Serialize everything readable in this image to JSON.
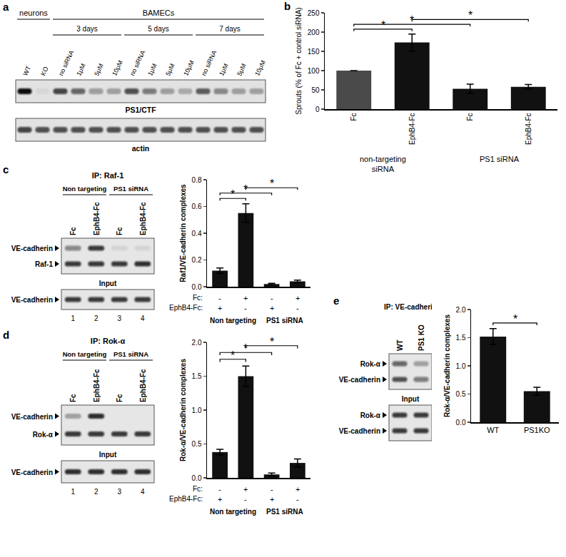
{
  "chart_data": [
    {
      "panel": "b",
      "type": "bar",
      "y_label": "Sprouts (% of Fc + control siRNA)",
      "categories": [
        "Fc",
        "EphB4-Fc",
        "Fc",
        "EphB4-Fc"
      ],
      "values": [
        100,
        173,
        53,
        58
      ],
      "errors": [
        0,
        22,
        12,
        6
      ],
      "colors": [
        "#4a4a4a",
        "#111111",
        "#111111",
        "#111111"
      ],
      "ylim": [
        0,
        250
      ],
      "yticks": [
        0,
        50,
        100,
        150,
        200,
        250
      ],
      "grid": false,
      "groups": [
        {
          "label": "non-targeting\nsiRNA",
          "members": [
            0,
            1
          ]
        },
        {
          "label": "PS1 siRNA",
          "members": [
            2,
            3
          ]
        }
      ],
      "significance": [
        {
          "pair": [
            0,
            1
          ],
          "label": "*"
        },
        {
          "pair": [
            0,
            2
          ],
          "label": "*"
        },
        {
          "pair": [
            1,
            3
          ],
          "label": "*"
        }
      ]
    },
    {
      "type": "bar",
      "y_label": "Raf1/VE-cadherin complexes",
      "categories": [
        null,
        null,
        null,
        null
      ],
      "values": [
        0.12,
        0.55,
        0.02,
        0.04
      ],
      "errors": [
        0.02,
        0.07,
        0.005,
        0.01
      ],
      "color": "#111111",
      "tick_labels": "y",
      "ylim": [
        0,
        0.8
      ],
      "yticks": [
        {
          "value": 0,
          "label": "0.0"
        },
        0.2,
        0.4,
        0.6,
        0.8
      ],
      "grid": false,
      "x_table": [
        {
          "label": "Fc:",
          "values": [
            "-",
            "+",
            "-",
            "+"
          ]
        },
        {
          "label": "EphB4-Fc:",
          "values": [
            "+",
            "-",
            "+",
            "-"
          ]
        }
      ],
      "groups": [
        {
          "label": "Non targeting",
          "members": [
            0,
            1
          ]
        },
        {
          "label": "PS1 siRNA",
          "members": [
            2,
            3
          ]
        }
      ],
      "significance": [
        {
          "pair": [
            0,
            1
          ],
          "label": "*"
        },
        {
          "pair": [
            0,
            2
          ],
          "label": "*"
        },
        {
          "pair": [
            1,
            3
          ],
          "label": "*"
        }
      ]
    },
    {
      "type": "bar",
      "y_label": "Rok-α/VE-cadherin complexes",
      "categories": [
        null,
        null,
        null,
        null
      ],
      "values": [
        0.38,
        1.5,
        0.05,
        0.22
      ],
      "errors": [
        0.04,
        0.15,
        0.02,
        0.06
      ],
      "color": "#111111",
      "tick_labels": "y",
      "ylim": [
        0,
        2
      ],
      "yticks": [
        {
          "value": 0,
          "label": "0.0"
        },
        0.5,
        {
          "value": 1,
          "label": "1.0"
        },
        1.5,
        {
          "value": 2,
          "label": "2.0"
        }
      ],
      "grid": false,
      "x_table": [
        {
          "label": "Fc:",
          "values": [
            "-",
            "+",
            "-",
            "+"
          ]
        },
        {
          "label": "EphB4-Fc:",
          "values": [
            "+",
            "-",
            "+",
            "-"
          ]
        }
      ],
      "groups": [
        {
          "label": "Non targeting",
          "members": [
            0,
            1
          ]
        },
        {
          "label": "PS1 siRNA",
          "members": [
            2,
            3
          ]
        }
      ],
      "significance": [
        {
          "pair": [
            0,
            1
          ],
          "label": "*"
        },
        {
          "pair": [
            0,
            2
          ],
          "label": "*"
        },
        {
          "pair": [
            1,
            3
          ],
          "label": "*"
        }
      ]
    },
    {
      "type": "bar",
      "y_label": "Rok-α/VE-cadherin complexes",
      "categories": [
        "WT",
        "PS1KO"
      ],
      "values": [
        1.52,
        0.55
      ],
      "errors": [
        0.14,
        0.07
      ],
      "color": "#111111",
      "ylim": [
        0,
        2
      ],
      "yticks": [
        {
          "value": 0,
          "label": "0.0"
        },
        0.5,
        {
          "value": 1,
          "label": "1.0"
        },
        1.5,
        {
          "value": 2,
          "label": "2.0"
        }
      ],
      "grid": false,
      "significance": [
        {
          "pair": [
            0,
            1
          ],
          "label": "*"
        }
      ]
    }
  ],
  "blots": {
    "a": {
      "panel": "a",
      "header_groups": [
        {
          "label": "neurons",
          "lanes": [
            0,
            1
          ]
        },
        {
          "label": "BAMECs",
          "lanes": [
            2,
            13
          ]
        }
      ],
      "subgroups": [
        {
          "label": "3 days",
          "lanes": [
            2,
            5
          ]
        },
        {
          "label": "5 days",
          "lanes": [
            6,
            9
          ]
        },
        {
          "label": "7 days",
          "lanes": [
            10,
            13
          ]
        }
      ],
      "lanes": [
        "WT",
        "KO",
        "no siRNA",
        "1μM",
        "5μM",
        "10μM",
        "no siRNA",
        "1μM",
        "5μM",
        "10μM",
        "no siRNA",
        "1μM",
        "5μM",
        "10μM"
      ],
      "rows": [
        {
          "label": "PS1/CTF",
          "bands": [
            1.0,
            0.05,
            0.75,
            0.6,
            0.35,
            0.3,
            0.7,
            0.5,
            0.3,
            0.25,
            0.65,
            0.45,
            0.3,
            0.3
          ]
        },
        {
          "label": "actin",
          "bands": [
            0.75,
            0.7,
            0.7,
            0.7,
            0.7,
            0.7,
            0.7,
            0.7,
            0.7,
            0.7,
            0.7,
            0.7,
            0.7,
            0.7
          ]
        }
      ]
    },
    "c": {
      "panel": "c",
      "ip": "IP: Raf-1",
      "groups": [
        {
          "label": "Non targeting",
          "lanes": [
            0,
            1
          ]
        },
        {
          "label": "PS1 siRNA",
          "lanes": [
            2,
            3
          ]
        }
      ],
      "lanes": [
        "Fc",
        "EphB4-Fc",
        "Fc",
        "EphB4-Fc"
      ],
      "blocks": [
        {
          "rows": [
            {
              "label": "VE-cadherin",
              "bands": [
                0.45,
                0.8,
                0.08,
                0.08
              ]
            },
            {
              "label": "Raf-1",
              "bands": [
                0.8,
                0.8,
                0.8,
                0.85
              ]
            }
          ]
        },
        {
          "title": "Input",
          "rows": [
            {
              "label": "VE-cadherin",
              "bands": [
                0.8,
                0.8,
                0.8,
                0.8
              ]
            }
          ]
        }
      ],
      "lane_numbers": [
        1,
        2,
        3,
        4
      ]
    },
    "d": {
      "panel": "d",
      "ip": "IP: Rok-α",
      "groups": [
        {
          "label": "Non targeting",
          "lanes": [
            0,
            1
          ]
        },
        {
          "label": "PS1 siRNA",
          "lanes": [
            2,
            3
          ]
        }
      ],
      "lanes": [
        "Fc",
        "EphB4-Fc",
        "Fc",
        "EphB4-Fc"
      ],
      "blocks": [
        {
          "rows": [
            {
              "label": "VE-cadherin",
              "bands": [
                0.3,
                0.85,
                0,
                0
              ]
            },
            {
              "label": "Rok-α",
              "bands": [
                0.8,
                0.8,
                0.8,
                0.8
              ]
            }
          ]
        },
        {
          "title": "Input",
          "rows": [
            {
              "label": "VE-cadherin",
              "bands": [
                0.85,
                0.85,
                0.85,
                0.85
              ]
            }
          ]
        }
      ],
      "lane_numbers": [
        1,
        2,
        3,
        4
      ]
    },
    "e": {
      "panel": "e",
      "ip": "IP: VE-cadherin",
      "lanes": [
        "WT",
        "PS1 KO"
      ],
      "blocks": [
        {
          "rows": [
            {
              "label": "Rok-α",
              "bands": [
                0.6,
                0.3
              ]
            },
            {
              "label": "VE-cadherin",
              "bands": [
                0.7,
                0.5
              ]
            }
          ]
        },
        {
          "title": "Input",
          "rows": [
            {
              "label": "Rok-α",
              "bands": [
                0.8,
                0.8
              ]
            },
            {
              "label": "VE-cadherin",
              "bands": [
                0.8,
                0.8
              ]
            }
          ]
        }
      ]
    }
  }
}
